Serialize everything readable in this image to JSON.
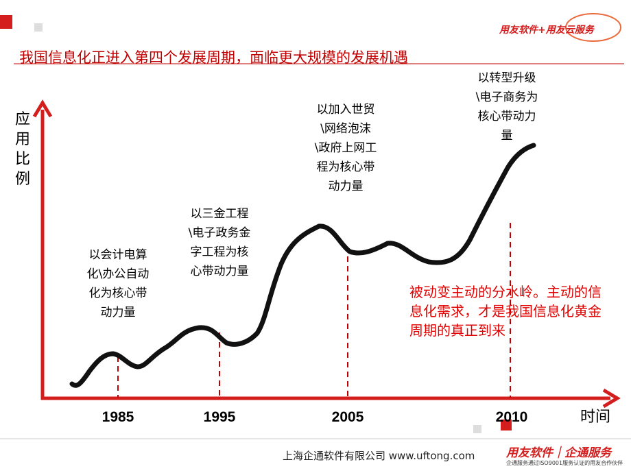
{
  "header": {
    "title": "我国信息化正进入第四个发展周期，面临更大规模的发展机遇",
    "logo": "用友软件+用友云服务"
  },
  "axes": {
    "y_label": "应用比例",
    "x_label": "时间"
  },
  "periods": [
    {
      "year": "1985",
      "label": "以会计电算化\\办公自动化为核心带动力量"
    },
    {
      "year": "1995",
      "label": "以三金工程\\电子政务金字工程为核心带动力量"
    },
    {
      "year": "2005",
      "label": "以加入世贸\\网络泡沫\\政府上网工程为核心带动力量"
    },
    {
      "year": "2010",
      "label": "以转型升级\\电子商务为核心带动力量"
    }
  ],
  "annotation": "被动变主动的分水岭。主动的信息化需求，才是我国信息化黄金周期的真正到来",
  "footer": {
    "company": "上海企通软件有限公司 www.uftong.com",
    "brand": "用友软件｜企通服务",
    "tagline": "企通服务通过ISO9001服务认证的用友合作伙伴"
  }
}
